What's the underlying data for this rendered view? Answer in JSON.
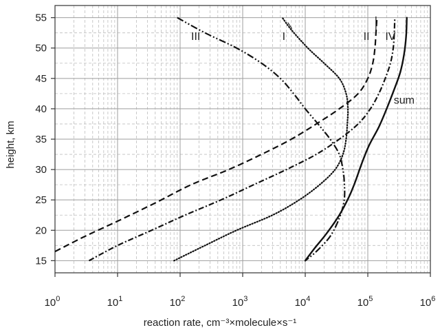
{
  "chart_data": {
    "type": "line",
    "xlabel": "reaction rate, cm⁻³×molecule×s⁻¹",
    "ylabel": "height, km",
    "xscale": "log",
    "xlim": [
      1,
      1000000
    ],
    "ylim": [
      13,
      57
    ],
    "grid": true,
    "x_ticks": [
      {
        "value": 1,
        "label": "10",
        "exp": "0"
      },
      {
        "value": 10,
        "label": "10",
        "exp": "1"
      },
      {
        "value": 100,
        "label": "10",
        "exp": "2"
      },
      {
        "value": 1000,
        "label": "10",
        "exp": "3"
      },
      {
        "value": 10000,
        "label": "10",
        "exp": "4"
      },
      {
        "value": 100000,
        "label": "10",
        "exp": "5"
      },
      {
        "value": 1000000,
        "label": "10",
        "exp": "6"
      }
    ],
    "y_ticks": [
      15,
      20,
      25,
      30,
      35,
      40,
      45,
      50,
      55
    ],
    "series": [
      {
        "name": "I",
        "style": "dotted",
        "points": [
          [
            80,
            15
          ],
          [
            250,
            17.5
          ],
          [
            800,
            20
          ],
          [
            3000,
            22.5
          ],
          [
            8000,
            25
          ],
          [
            17000,
            27.5
          ],
          [
            30000,
            30
          ],
          [
            40000,
            32.5
          ],
          [
            45000,
            35
          ],
          [
            47000,
            37.5
          ],
          [
            48000,
            40
          ],
          [
            45000,
            42.5
          ],
          [
            35000,
            45
          ],
          [
            20000,
            47.5
          ],
          [
            11000,
            50
          ],
          [
            6000,
            53
          ],
          [
            4300,
            55
          ]
        ]
      },
      {
        "name": "II",
        "style": "dashed",
        "points": [
          [
            1,
            16.5
          ],
          [
            3,
            19
          ],
          [
            10,
            21.5
          ],
          [
            40,
            24.5
          ],
          [
            150,
            27.5
          ],
          [
            600,
            30
          ],
          [
            2000,
            32.5
          ],
          [
            6000,
            35
          ],
          [
            15000,
            37.5
          ],
          [
            35000,
            40
          ],
          [
            70000,
            42.5
          ],
          [
            100000,
            45
          ],
          [
            120000,
            47.5
          ],
          [
            130000,
            50
          ],
          [
            135000,
            52.5
          ],
          [
            140000,
            55
          ]
        ]
      },
      {
        "name": "III",
        "style": "dash-dot-dot",
        "points": [
          [
            90,
            55
          ],
          [
            250,
            52.5
          ],
          [
            800,
            50
          ],
          [
            2000,
            47.5
          ],
          [
            4000,
            45
          ],
          [
            6500,
            42.5
          ],
          [
            10000,
            40
          ],
          [
            16000,
            37.5
          ],
          [
            25000,
            35
          ],
          [
            35000,
            32.5
          ],
          [
            40000,
            30
          ],
          [
            42000,
            28
          ],
          [
            42000,
            25
          ],
          [
            35000,
            22
          ],
          [
            25000,
            19
          ],
          [
            15000,
            16.5
          ],
          [
            10000,
            15
          ]
        ]
      },
      {
        "name": "IV",
        "style": "dash-dot",
        "points": [
          [
            3.5,
            15
          ],
          [
            10,
            17.5
          ],
          [
            35,
            20
          ],
          [
            120,
            22.5
          ],
          [
            450,
            25
          ],
          [
            1500,
            27.5
          ],
          [
            5000,
            30
          ],
          [
            15000,
            32.5
          ],
          [
            35000,
            35
          ],
          [
            70000,
            37.5
          ],
          [
            110000,
            40
          ],
          [
            150000,
            42.5
          ],
          [
            190000,
            45
          ],
          [
            230000,
            47.5
          ],
          [
            255000,
            50
          ],
          [
            265000,
            52.5
          ],
          [
            270000,
            55
          ]
        ]
      },
      {
        "name": "sum",
        "style": "solid",
        "points": [
          [
            10000,
            15
          ],
          [
            14000,
            17
          ],
          [
            22000,
            19.5
          ],
          [
            35000,
            22.5
          ],
          [
            50000,
            25.5
          ],
          [
            63000,
            28
          ],
          [
            80000,
            31
          ],
          [
            105000,
            34
          ],
          [
            150000,
            37
          ],
          [
            200000,
            40
          ],
          [
            260000,
            43
          ],
          [
            330000,
            46
          ],
          [
            380000,
            49
          ],
          [
            410000,
            52
          ],
          [
            420000,
            55
          ]
        ]
      }
    ],
    "annotations": [
      {
        "text": "I",
        "x": 4300,
        "y": 52
      },
      {
        "text": "II",
        "x": 85000,
        "y": 52
      },
      {
        "text": "IV",
        "x": 190000,
        "y": 52
      },
      {
        "text": "III",
        "x": 150,
        "y": 52
      },
      {
        "text": "sum",
        "x": 260000,
        "y": 41.5
      }
    ]
  }
}
